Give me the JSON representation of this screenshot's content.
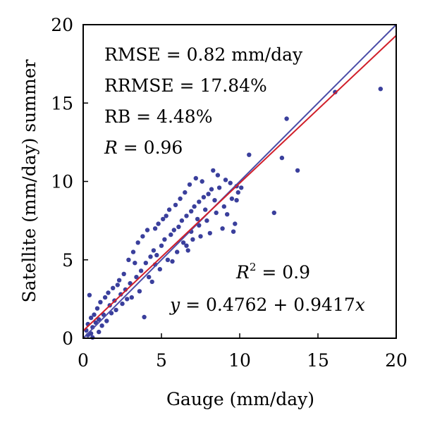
{
  "chart_data": {
    "type": "scatter",
    "title": "",
    "xlabel": "Gauge (mm/day)",
    "ylabel": "Satellite (mm/day) summer",
    "xlim": [
      0,
      20
    ],
    "ylim": [
      0,
      20
    ],
    "xticks": [
      "0",
      "5",
      "10",
      "15",
      "20"
    ],
    "yticks": [
      "0",
      "5",
      "10",
      "15",
      "20"
    ],
    "grid": false,
    "colors": {
      "points": "#3a3f9c",
      "one_to_one_line": "#4b4da8",
      "fit_line": "#d11f2a"
    },
    "lines": [
      {
        "kind": "one-to-one",
        "intercept": 0,
        "slope": 1
      },
      {
        "kind": "regression",
        "intercept": 0.4762,
        "slope": 0.9417
      }
    ],
    "stats": {
      "rmse": {
        "label": "RMSE",
        "eq": " = ",
        "value": "0.82 mm/day"
      },
      "rrmse": {
        "label": "RRMSE",
        "eq": " = ",
        "value": "17.84%"
      },
      "rb": {
        "label": "RB",
        "eq": " = ",
        "value": "4.48%"
      },
      "r": {
        "label": "R",
        "eq": " = ",
        "value": "0.96"
      },
      "r2": {
        "label": "R",
        "sup": "2",
        "eq": " = ",
        "value": "0.9"
      },
      "equation": {
        "y": "y",
        "rhs": " = 0.4762 + 0.9417",
        "x": "x"
      }
    },
    "series": [
      {
        "points": [
          [
            0.4,
            2.75
          ],
          [
            3.9,
            1.35
          ],
          [
            0.6,
            0.05
          ],
          [
            0.3,
            0.2
          ],
          [
            0.2,
            0.5
          ],
          [
            0.5,
            0.3
          ],
          [
            10.6,
            11.7
          ],
          [
            12.7,
            11.5
          ],
          [
            13.0,
            14.0
          ],
          [
            13.7,
            10.7
          ],
          [
            12.2,
            8.0
          ],
          [
            16.1,
            15.7
          ],
          [
            19.0,
            15.9
          ],
          [
            10.1,
            9.6
          ],
          [
            9.8,
            8.8
          ],
          [
            9.9,
            9.3
          ],
          [
            8.3,
            10.7
          ],
          [
            8.6,
            10.4
          ],
          [
            9.1,
            10.1
          ],
          [
            9.4,
            9.9
          ],
          [
            9.7,
            7.3
          ],
          [
            9.6,
            6.8
          ],
          [
            8.9,
            7.0
          ],
          [
            8.1,
            6.7
          ],
          [
            7.5,
            6.5
          ],
          [
            9.2,
            7.9
          ],
          [
            6.8,
            9.8
          ],
          [
            7.2,
            10.2
          ],
          [
            7.6,
            10.0
          ],
          [
            6.2,
            8.9
          ],
          [
            6.5,
            9.3
          ],
          [
            5.5,
            8.2
          ],
          [
            5.9,
            8.5
          ],
          [
            5.3,
            7.8
          ],
          [
            7.0,
            6.3
          ],
          [
            6.6,
            5.9
          ],
          [
            6.0,
            5.5
          ],
          [
            5.4,
            5.0
          ],
          [
            4.9,
            4.4
          ],
          [
            4.6,
            4.7
          ],
          [
            4.2,
            3.9
          ],
          [
            3.2,
            5.5
          ],
          [
            3.5,
            6.1
          ],
          [
            3.8,
            6.5
          ],
          [
            4.1,
            6.9
          ],
          [
            2.9,
            5.0
          ],
          [
            3.3,
            4.8
          ],
          [
            2.6,
            4.1
          ],
          [
            2.3,
            3.7
          ],
          [
            4.8,
            7.3
          ],
          [
            5.1,
            7.6
          ],
          [
            4.6,
            7.0
          ],
          [
            8.0,
            9.2
          ],
          [
            8.4,
            8.8
          ],
          [
            8.7,
            9.6
          ],
          [
            7.8,
            8.2
          ],
          [
            7.3,
            7.6
          ],
          [
            1.3,
            1.5
          ],
          [
            1.7,
            2.1
          ],
          [
            2.0,
            2.4
          ],
          [
            2.4,
            2.8
          ],
          [
            2.7,
            3.1
          ],
          [
            3.0,
            3.5
          ],
          [
            3.4,
            3.9
          ],
          [
            3.7,
            4.3
          ],
          [
            1.0,
            1.2
          ],
          [
            1.2,
            0.8
          ],
          [
            0.8,
            1.0
          ],
          [
            1.5,
            1.1
          ],
          [
            1.8,
            1.6
          ],
          [
            2.1,
            1.8
          ],
          [
            2.5,
            2.2
          ],
          [
            2.8,
            2.5
          ],
          [
            4.0,
            4.8
          ],
          [
            4.3,
            5.2
          ],
          [
            4.5,
            5.6
          ],
          [
            4.7,
            5.3
          ],
          [
            5.0,
            5.9
          ],
          [
            5.2,
            6.3
          ],
          [
            5.6,
            6.6
          ],
          [
            5.8,
            6.9
          ],
          [
            6.1,
            7.1
          ],
          [
            6.3,
            7.5
          ],
          [
            6.6,
            7.8
          ],
          [
            6.9,
            8.1
          ],
          [
            7.1,
            8.4
          ],
          [
            7.4,
            8.7
          ],
          [
            7.7,
            9.0
          ],
          [
            8.2,
            9.5
          ],
          [
            6.4,
            6.1
          ],
          [
            6.9,
            6.8
          ],
          [
            7.4,
            7.2
          ],
          [
            7.9,
            7.5
          ],
          [
            8.5,
            8.0
          ],
          [
            9.0,
            8.4
          ],
          [
            9.5,
            8.9
          ],
          [
            9.8,
            9.7
          ],
          [
            0.9,
            1.9
          ],
          [
            1.1,
            2.3
          ],
          [
            1.4,
            2.6
          ],
          [
            1.6,
            2.9
          ],
          [
            1.9,
            3.2
          ],
          [
            2.2,
            3.4
          ],
          [
            0.7,
            1.5
          ],
          [
            0.5,
            1.3
          ],
          [
            3.1,
            2.6
          ],
          [
            3.6,
            3.0
          ],
          [
            4.4,
            3.6
          ],
          [
            5.7,
            4.9
          ],
          [
            6.7,
            5.6
          ],
          [
            0.3,
            0.9
          ],
          [
            0.6,
            0.7
          ],
          [
            1.0,
            0.4
          ]
        ]
      }
    ]
  }
}
